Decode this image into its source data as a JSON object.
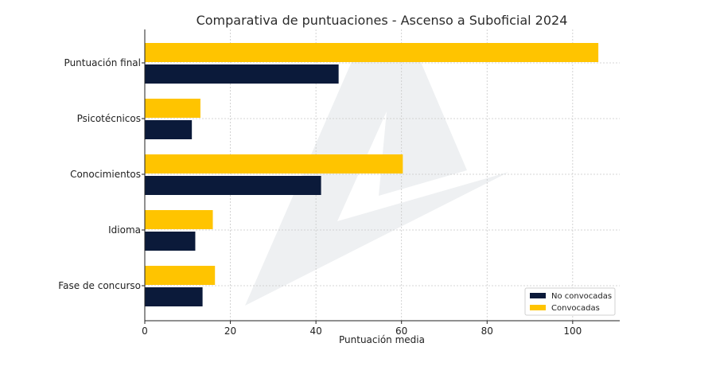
{
  "chart_data": {
    "type": "bar",
    "orientation": "horizontal",
    "title": "Comparativa de puntuaciones - Ascenso a Suboficial 2024",
    "xlabel": "Puntuación media",
    "ylabel": "",
    "xlim": [
      0,
      111
    ],
    "xticks": [
      0,
      20,
      40,
      60,
      80,
      100
    ],
    "grid": true,
    "legend_position": "bottom-right",
    "categories": [
      "Puntuación final",
      "Psicotécnicos",
      "Conocimientos",
      "Idioma",
      "Fase de concurso"
    ],
    "series": [
      {
        "name": "No convocadas",
        "color": "#0b1a3a",
        "values": [
          45.3,
          11.0,
          41.2,
          11.8,
          13.5
        ]
      },
      {
        "name": "Convocadas",
        "color": "#ffc400",
        "values": [
          106.0,
          13.0,
          60.3,
          15.9,
          16.4
        ]
      }
    ],
    "colors": {
      "grid": "#c8c8c8",
      "axis": "#222222",
      "watermark": "#eef0f2"
    }
  }
}
